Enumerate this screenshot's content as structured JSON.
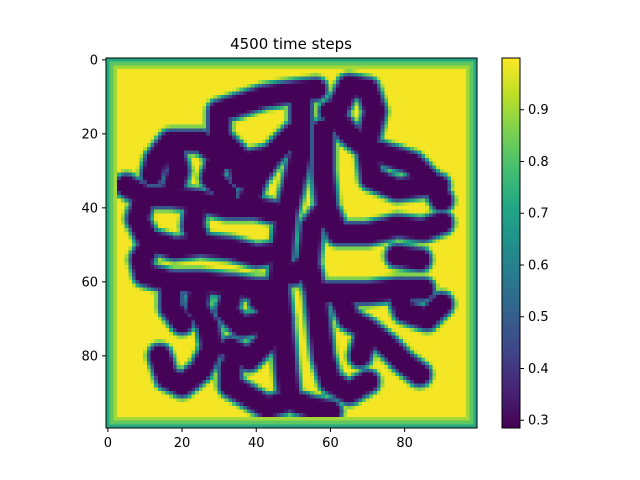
{
  "chart_data": {
    "type": "heatmap",
    "title": "4500 time steps",
    "xlabel": "",
    "ylabel": "",
    "grid_size": [
      100,
      100
    ],
    "xlim": [
      -0.5,
      99.5
    ],
    "ylim": [
      99.5,
      -0.5
    ],
    "x_ticks": [
      0,
      20,
      40,
      60,
      80
    ],
    "x_tick_labels": [
      "0",
      "20",
      "40",
      "60",
      "80"
    ],
    "y_ticks": [
      0,
      20,
      40,
      60,
      80
    ],
    "y_tick_labels": [
      "0",
      "20",
      "40",
      "60",
      "80"
    ],
    "colormap": "viridis",
    "value_range": [
      0.285,
      1.0
    ],
    "colorbar_ticks": [
      0.3,
      0.4,
      0.5,
      0.6,
      0.7,
      0.8,
      0.9
    ],
    "colorbar_tick_labels": [
      "0.3",
      "0.4",
      "0.5",
      "0.6",
      "0.7",
      "0.8",
      "0.9"
    ],
    "grid": false,
    "background_value": 0.99,
    "border_values": [
      0.72,
      0.82,
      0.9
    ],
    "stripe_value": 0.29,
    "stripe_width": 2.1,
    "stripes": [
      [
        [
          52,
          12
        ],
        [
          52,
          25
        ],
        [
          50,
          34
        ],
        [
          48,
          42
        ],
        [
          47,
          52
        ],
        [
          46,
          62
        ],
        [
          47,
          72
        ],
        [
          48,
          83
        ],
        [
          49,
          92
        ]
      ],
      [
        [
          50,
          20
        ],
        [
          44,
          26
        ],
        [
          36,
          28
        ],
        [
          30,
          26
        ],
        [
          25,
          22
        ],
        [
          17,
          22
        ],
        [
          13,
          27
        ],
        [
          12,
          31
        ]
      ],
      [
        [
          44,
          26
        ],
        [
          40,
          32
        ],
        [
          38,
          38
        ]
      ],
      [
        [
          48,
          42
        ],
        [
          40,
          40
        ],
        [
          32,
          40
        ],
        [
          24,
          38
        ],
        [
          17,
          37
        ],
        [
          10,
          37
        ],
        [
          5,
          34
        ]
      ],
      [
        [
          47,
          52
        ],
        [
          40,
          53
        ],
        [
          33,
          51
        ],
        [
          25,
          50
        ],
        [
          18,
          51
        ],
        [
          12,
          49
        ]
      ],
      [
        [
          46,
          62
        ],
        [
          40,
          62
        ],
        [
          33,
          61
        ],
        [
          25,
          60
        ],
        [
          17,
          60
        ],
        [
          10,
          58
        ]
      ],
      [
        [
          34,
          61
        ],
        [
          32,
          68
        ],
        [
          36,
          72
        ],
        [
          42,
          71
        ],
        [
          43,
          76
        ],
        [
          38,
          81
        ],
        [
          33,
          78
        ]
      ],
      [
        [
          47,
          70
        ],
        [
          41,
          65
        ]
      ],
      [
        [
          17,
          60
        ],
        [
          17,
          67
        ],
        [
          20,
          71
        ]
      ],
      [
        [
          25,
          60
        ],
        [
          24,
          67
        ],
        [
          27,
          72
        ],
        [
          28,
          78
        ],
        [
          25,
          84
        ],
        [
          20,
          88
        ]
      ],
      [
        [
          36,
          32
        ],
        [
          35,
          26
        ],
        [
          30,
          21
        ],
        [
          30,
          14
        ],
        [
          36,
          12
        ],
        [
          42,
          10
        ],
        [
          48,
          9
        ],
        [
          56,
          8
        ]
      ],
      [
        [
          58,
          19
        ],
        [
          58,
          30
        ],
        [
          59,
          40
        ],
        [
          62,
          47
        ],
        [
          70,
          47
        ],
        [
          78,
          45
        ],
        [
          85,
          46
        ],
        [
          90,
          44
        ]
      ],
      [
        [
          59,
          40
        ],
        [
          55,
          45
        ],
        [
          54,
          55
        ],
        [
          56,
          63
        ],
        [
          62,
          63
        ],
        [
          70,
          63
        ],
        [
          78,
          62
        ],
        [
          85,
          62
        ]
      ],
      [
        [
          60,
          14
        ],
        [
          65,
          20
        ],
        [
          70,
          24
        ],
        [
          76,
          26
        ],
        [
          82,
          28
        ],
        [
          87,
          33
        ],
        [
          90,
          38
        ]
      ],
      [
        [
          70,
          24
        ],
        [
          71,
          32
        ],
        [
          78,
          35
        ],
        [
          85,
          34
        ],
        [
          89,
          34
        ]
      ],
      [
        [
          62,
          13
        ],
        [
          65,
          7
        ],
        [
          70,
          8
        ],
        [
          72,
          14
        ],
        [
          70,
          22
        ]
      ],
      [
        [
          56,
          63
        ],
        [
          57,
          72
        ],
        [
          58,
          80
        ],
        [
          60,
          87
        ],
        [
          65,
          90
        ],
        [
          70,
          87
        ]
      ],
      [
        [
          62,
          63
        ],
        [
          65,
          70
        ],
        [
          70,
          73
        ],
        [
          75,
          77
        ],
        [
          80,
          82
        ],
        [
          84,
          85
        ]
      ],
      [
        [
          78,
          62
        ],
        [
          80,
          68
        ],
        [
          86,
          70
        ],
        [
          90,
          66
        ]
      ],
      [
        [
          54,
          55
        ],
        [
          50,
          58
        ]
      ],
      [
        [
          70,
          73
        ],
        [
          68,
          80
        ]
      ],
      [
        [
          84,
          54
        ],
        [
          78,
          53
        ]
      ],
      [
        [
          49,
          92
        ],
        [
          43,
          94
        ],
        [
          38,
          91
        ],
        [
          33,
          88
        ],
        [
          33,
          83
        ]
      ],
      [
        [
          49,
          92
        ],
        [
          55,
          94
        ],
        [
          60,
          95
        ]
      ],
      [
        [
          20,
          88
        ],
        [
          16,
          86
        ],
        [
          14,
          80
        ]
      ],
      [
        [
          10,
          37
        ],
        [
          8,
          43
        ],
        [
          11,
          49
        ]
      ],
      [
        [
          12,
          49
        ],
        [
          9,
          54
        ],
        [
          10,
          58
        ]
      ],
      [
        [
          17,
          37
        ],
        [
          19,
          30
        ],
        [
          17,
          22
        ]
      ],
      [
        [
          25,
          50
        ],
        [
          23,
          45
        ],
        [
          24,
          38
        ]
      ],
      [
        [
          30,
          26
        ],
        [
          28,
          32
        ],
        [
          32,
          36
        ]
      ]
    ]
  }
}
